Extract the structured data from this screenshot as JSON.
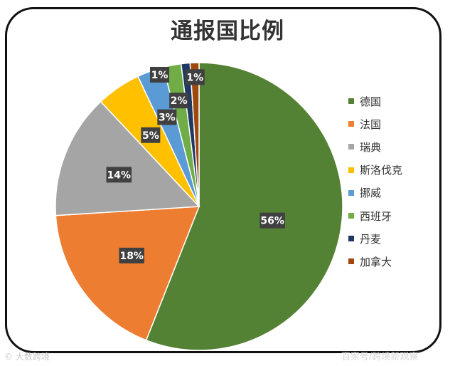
{
  "chart_data": {
    "type": "pie",
    "title": "通报国比例",
    "categories": [
      "德国",
      "法国",
      "瑞典",
      "斯洛伐克",
      "挪威",
      "西班牙",
      "丹麦",
      "加拿大"
    ],
    "values": [
      56,
      18,
      14,
      5,
      3,
      2,
      1,
      1
    ],
    "data_labels": [
      "56%",
      "18%",
      "14%",
      "5%",
      "3%",
      "2%",
      "1%",
      "1%"
    ],
    "colors": [
      "#548235",
      "#ed7d31",
      "#a5a5a5",
      "#ffc000",
      "#5b9bd5",
      "#70ad47",
      "#1f3864",
      "#9e480e"
    ],
    "legend_placement": "right"
  },
  "watermark": {
    "left": "© 大数跨境",
    "right": "百家号/跨境新观察"
  }
}
